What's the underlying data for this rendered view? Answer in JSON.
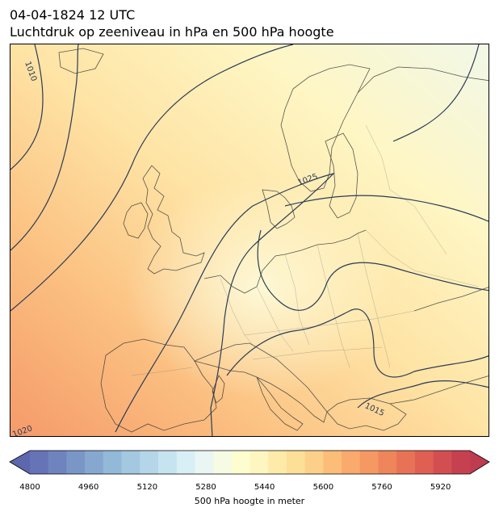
{
  "header": {
    "datetime": "04-04-1824 12 UTC",
    "subtitle": "Luchtdruk op zeeniveau in hPa en 500 hPa hoogte"
  },
  "map": {
    "region": "Europe",
    "isobar_labels": [
      "1010",
      "1025",
      "1015",
      "1020"
    ],
    "contour_color": "#2a3b55"
  },
  "colorbar": {
    "min": 4800,
    "max": 6000,
    "ticks": [
      "4800",
      "4960",
      "5120",
      "5280",
      "5440",
      "5600",
      "5760",
      "5920"
    ],
    "label": "500 hPa hoogte in meter",
    "colors": [
      "#6673b7",
      "#6f84bf",
      "#7a96c7",
      "#86a8d0",
      "#93b9d9",
      "#a3c8e0",
      "#b4d6e8",
      "#c6e3f0",
      "#d8eff5",
      "#e9f6f3",
      "#f6fbe4",
      "#fdfdd0",
      "#fef6c0",
      "#feebaa",
      "#fddf98",
      "#fcd088",
      "#fbbd78",
      "#f9aa6c",
      "#f59862",
      "#ef855b",
      "#e87256",
      "#df6053",
      "#d34e51",
      "#c64150"
    ]
  }
}
